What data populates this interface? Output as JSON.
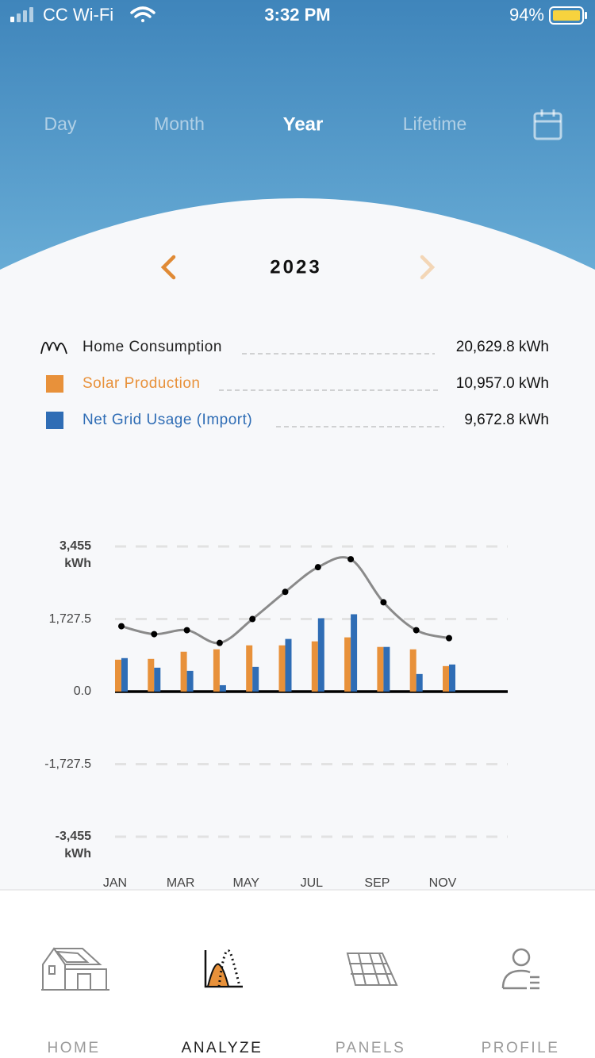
{
  "status_bar": {
    "carrier": "CC Wi-Fi",
    "time": "3:32 PM",
    "battery": "94%"
  },
  "tabs": [
    "Day",
    "Month",
    "Year",
    "Lifetime"
  ],
  "year": "2023",
  "summary": {
    "totals": [
      "20,629.8 kWh",
      "10,957.0 kWh",
      "9,672.8 kWh"
    ]
  },
  "chart_data": {
    "type": "bar",
    "categories": [
      "JAN",
      null,
      "MAR",
      null,
      "MAY",
      null,
      "JUL",
      null,
      "SEP",
      null,
      "NOV"
    ],
    "series": [
      {
        "name": "Home Consumption",
        "type": "line",
        "color": "#8a8a8a",
        "values": [
          1556,
          1367,
          1462,
          1158,
          1727,
          2373,
          2961,
          3151,
          2126,
          1462,
          1272
        ]
      },
      {
        "name": "Solar Production",
        "type": "bar",
        "color": "#e8913a",
        "values": [
          759,
          778,
          949,
          1006,
          1101,
          1101,
          1196,
          1291,
          1063,
          1006,
          607
        ]
      },
      {
        "name": "Net Grid Usage (Import)",
        "type": "bar",
        "color": "#2f6db5",
        "values": [
          797,
          569,
          493,
          152,
          588,
          1253,
          1746,
          1841,
          1063,
          418,
          645
        ]
      }
    ],
    "ylim": [
      -3455,
      3455
    ],
    "yticks": [
      {
        "value": 3455,
        "label": "3,455 kWh"
      },
      {
        "value": 1727.5,
        "label": "1,727.5"
      },
      {
        "value": 0,
        "label": "0.0"
      },
      {
        "value": -1727.5,
        "label": "-1,727.5"
      },
      {
        "value": -3455,
        "label": "-3,455 kWh"
      }
    ],
    "grid": true
  },
  "nav": [
    "HOME",
    "ANALYZE",
    "PANELS",
    "PROFILE"
  ]
}
